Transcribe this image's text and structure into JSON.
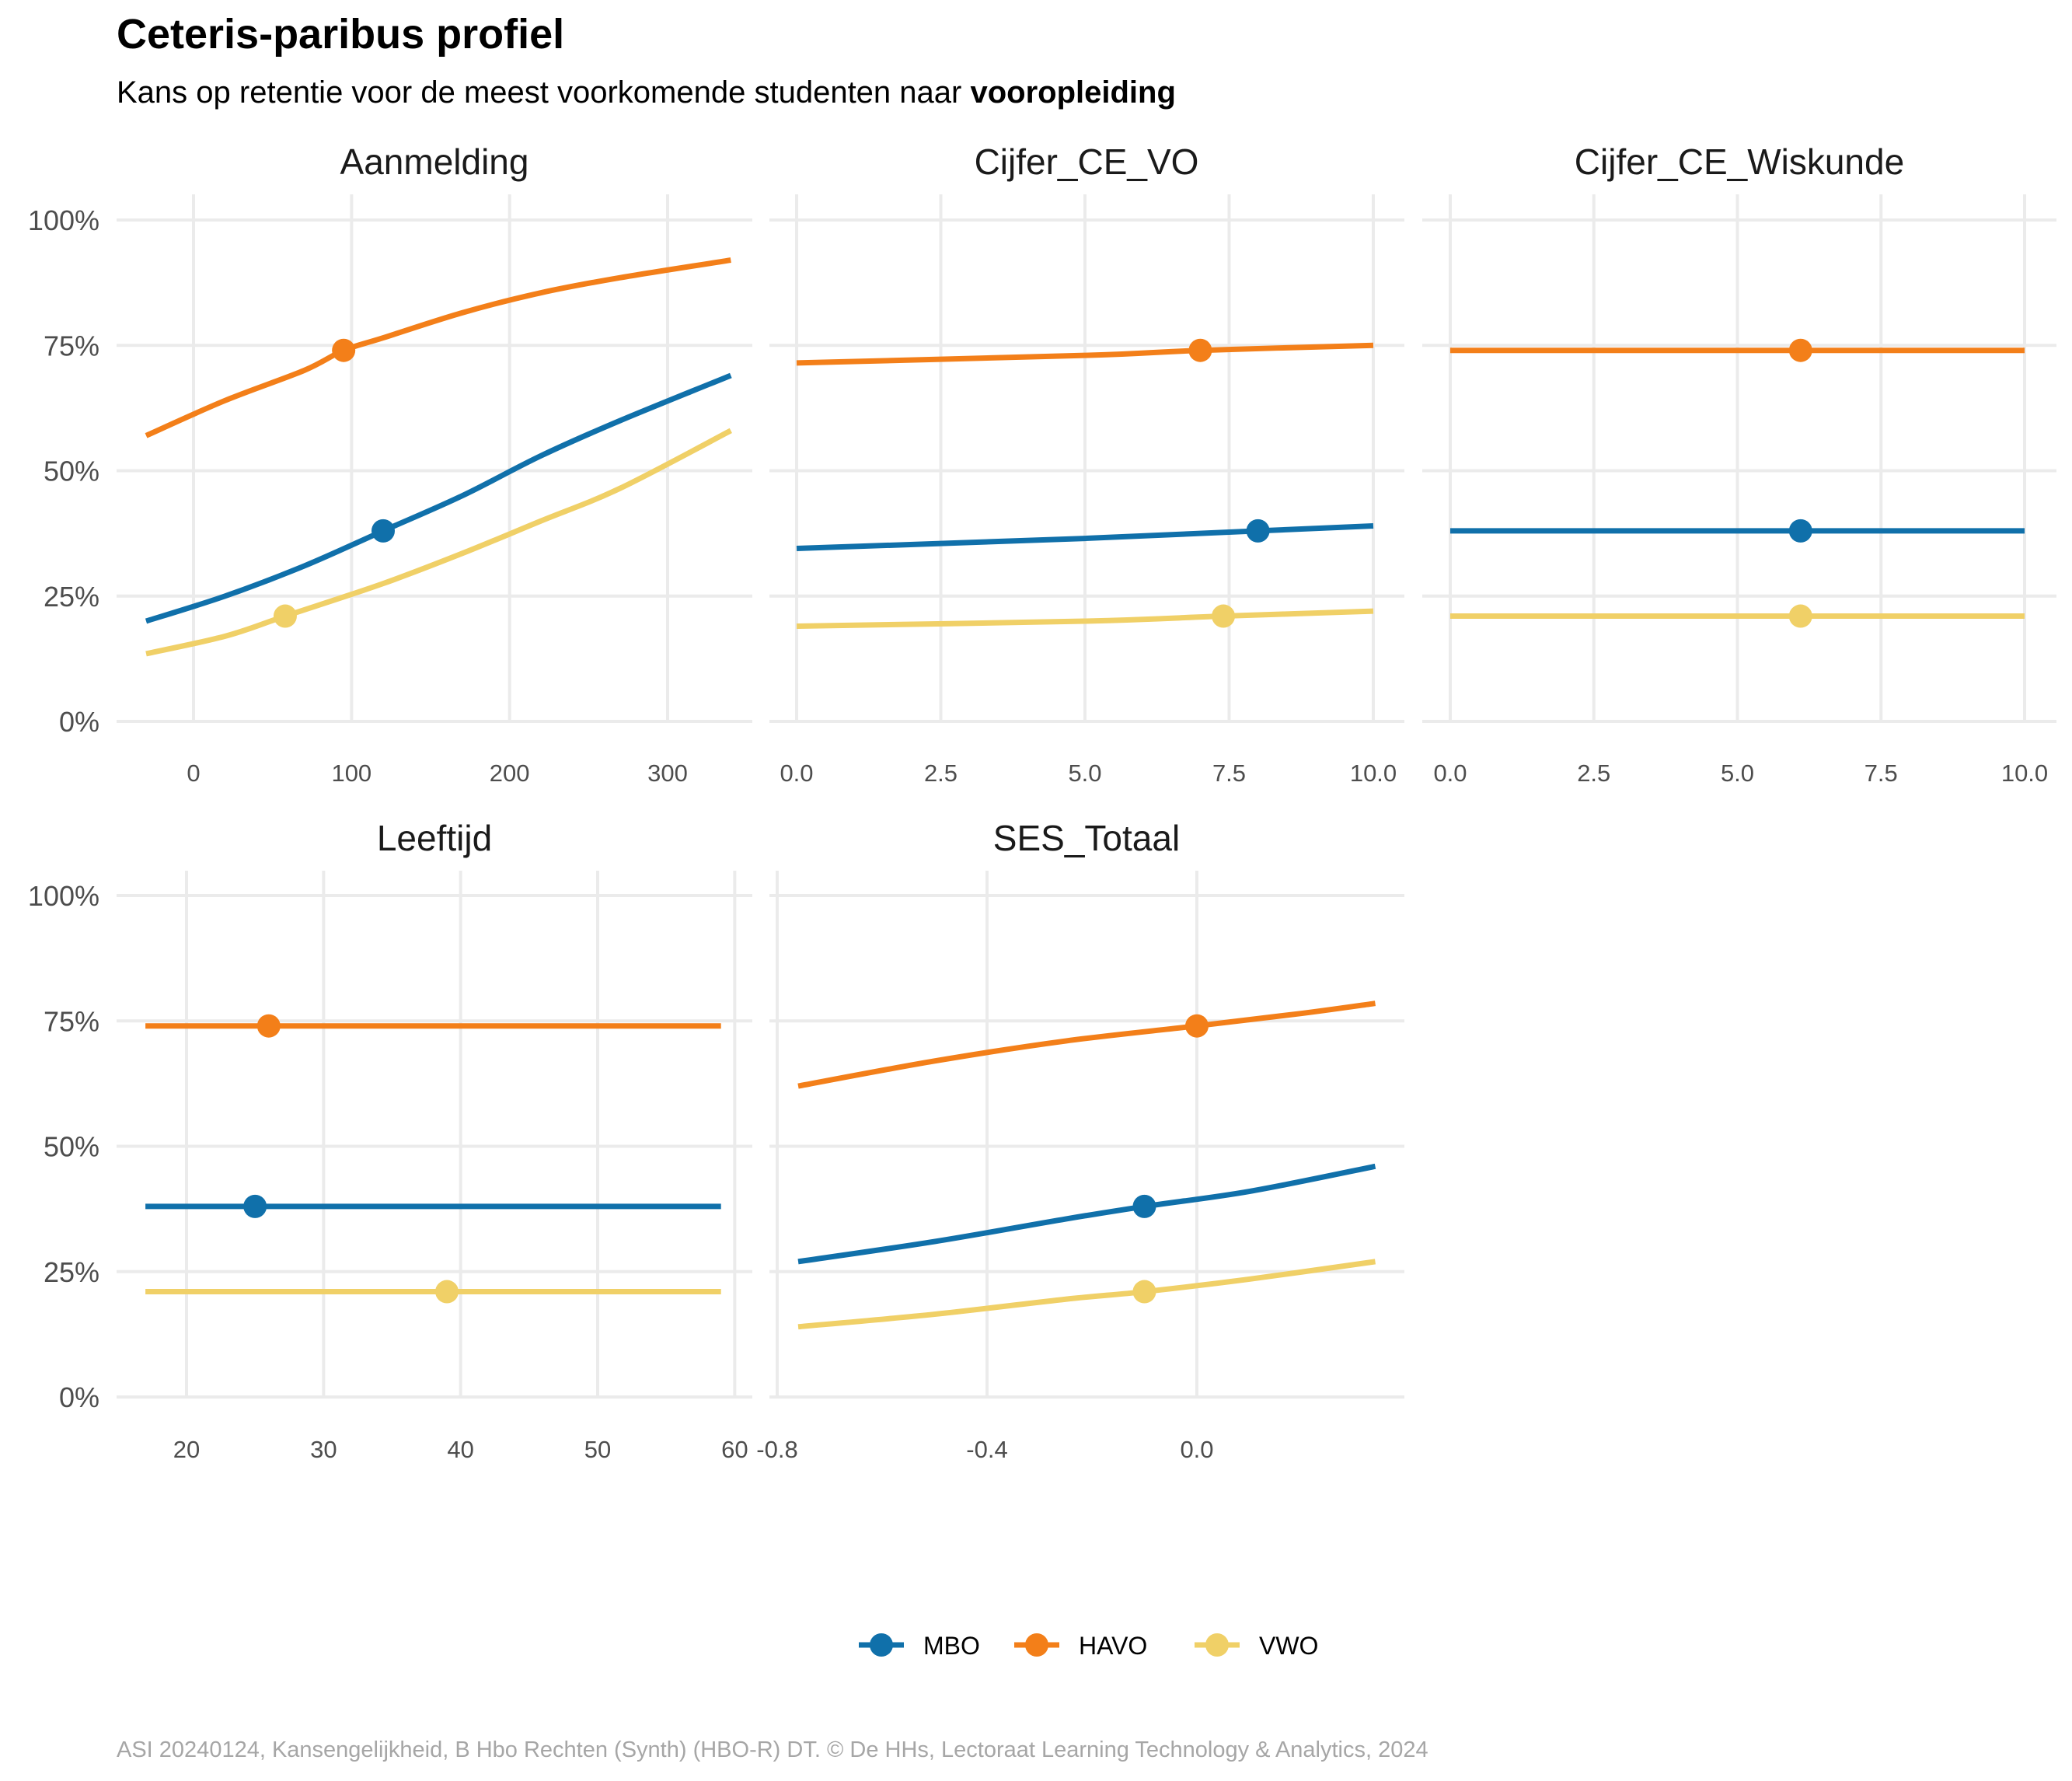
{
  "title": "Ceteris-paribus profiel",
  "subtitle_prefix": "Kans op retentie voor de meest voorkomende studenten naar ",
  "subtitle_bold": "vooropleiding",
  "caption": "ASI 20240124, Kansengelijkheid, B Hbo Rechten (Synth) (HBO-R) DT. © De HHs, Lectoraat Learning Technology & Analytics, 2024",
  "colors": {
    "MBO": "#1070aa",
    "HAVO": "#f37f19",
    "VWO": "#f0d067"
  },
  "legend": [
    {
      "label": "MBO",
      "color": "#1070aa"
    },
    {
      "label": "HAVO",
      "color": "#f37f19"
    },
    {
      "label": "VWO",
      "color": "#f0d067"
    }
  ],
  "chart_data": [
    {
      "type": "line",
      "panel": "Aanmelding",
      "xlim": [
        -30,
        340
      ],
      "ylim": [
        0,
        1
      ],
      "xticks": [
        0,
        100,
        200,
        300
      ],
      "xtick_labels": [
        "0",
        "100",
        "200",
        "300"
      ],
      "yticks": [
        0,
        0.25,
        0.5,
        0.75,
        1
      ],
      "ytick_labels": [
        "0%",
        "25%",
        "50%",
        "75%",
        "100%"
      ],
      "series": [
        {
          "name": "MBO",
          "x": [
            -30,
            20,
            70,
            120,
            170,
            220,
            270,
            340
          ],
          "y": [
            0.2,
            0.25,
            0.31,
            0.38,
            0.45,
            0.53,
            0.6,
            0.69
          ],
          "point": [
            120,
            0.38
          ]
        },
        {
          "name": "HAVO",
          "x": [
            -30,
            20,
            70,
            95,
            120,
            170,
            220,
            270,
            340
          ],
          "y": [
            0.57,
            0.64,
            0.7,
            0.74,
            0.765,
            0.815,
            0.855,
            0.885,
            0.92
          ],
          "point": [
            95,
            0.74
          ]
        },
        {
          "name": "VWO",
          "x": [
            -30,
            20,
            58,
            120,
            170,
            220,
            270,
            340
          ],
          "y": [
            0.135,
            0.17,
            0.21,
            0.275,
            0.335,
            0.4,
            0.465,
            0.58
          ],
          "point": [
            58,
            0.21
          ]
        }
      ]
    },
    {
      "type": "line",
      "panel": "Cijfer_CE_VO",
      "xlim": [
        0,
        10
      ],
      "ylim": [
        0,
        1
      ],
      "xticks": [
        0,
        2.5,
        5,
        7.5,
        10
      ],
      "xtick_labels": [
        "0.0",
        "2.5",
        "5.0",
        "7.5",
        "10.0"
      ],
      "yticks": [
        0,
        0.25,
        0.5,
        0.75,
        1
      ],
      "series": [
        {
          "name": "MBO",
          "x": [
            0,
            5,
            8,
            10
          ],
          "y": [
            0.345,
            0.365,
            0.38,
            0.39
          ],
          "point": [
            8,
            0.38
          ]
        },
        {
          "name": "HAVO",
          "x": [
            0,
            5,
            7,
            10
          ],
          "y": [
            0.715,
            0.73,
            0.74,
            0.75
          ],
          "point": [
            7,
            0.74
          ]
        },
        {
          "name": "VWO",
          "x": [
            0,
            5,
            7.4,
            10
          ],
          "y": [
            0.19,
            0.2,
            0.21,
            0.22
          ],
          "point": [
            7.4,
            0.21
          ]
        }
      ]
    },
    {
      "type": "line",
      "panel": "Cijfer_CE_Wiskunde",
      "xlim": [
        0,
        10
      ],
      "ylim": [
        0,
        1
      ],
      "xticks": [
        0,
        2.5,
        5,
        7.5,
        10
      ],
      "xtick_labels": [
        "0.0",
        "2.5",
        "5.0",
        "7.5",
        "10.0"
      ],
      "yticks": [
        0,
        0.25,
        0.5,
        0.75,
        1
      ],
      "series": [
        {
          "name": "MBO",
          "x": [
            0,
            10
          ],
          "y": [
            0.38,
            0.38
          ],
          "point": [
            6.1,
            0.38
          ]
        },
        {
          "name": "HAVO",
          "x": [
            0,
            10
          ],
          "y": [
            0.74,
            0.74
          ],
          "point": [
            6.1,
            0.74
          ]
        },
        {
          "name": "VWO",
          "x": [
            0,
            10
          ],
          "y": [
            0.21,
            0.21
          ],
          "point": [
            6.1,
            0.21
          ]
        }
      ]
    },
    {
      "type": "line",
      "panel": "Leeftijd",
      "xlim": [
        17,
        59
      ],
      "ylim": [
        0,
        1
      ],
      "xticks": [
        20,
        30,
        40,
        50,
        60
      ],
      "xtick_labels": [
        "20",
        "30",
        "40",
        "50",
        "60"
      ],
      "yticks": [
        0,
        0.25,
        0.5,
        0.75,
        1
      ],
      "ytick_labels": [
        "0%",
        "25%",
        "50%",
        "75%",
        "100%"
      ],
      "series": [
        {
          "name": "MBO",
          "x": [
            17,
            59
          ],
          "y": [
            0.38,
            0.38
          ],
          "point": [
            25,
            0.38
          ]
        },
        {
          "name": "HAVO",
          "x": [
            17,
            59
          ],
          "y": [
            0.74,
            0.74
          ],
          "point": [
            26,
            0.74
          ]
        },
        {
          "name": "VWO",
          "x": [
            17,
            59
          ],
          "y": [
            0.21,
            0.21
          ],
          "point": [
            39,
            0.21
          ]
        }
      ]
    },
    {
      "type": "line",
      "panel": "SES_Totaal",
      "xlim": [
        -0.76,
        0.34
      ],
      "ylim": [
        0,
        1
      ],
      "xticks": [
        -0.8,
        -0.4,
        0.0
      ],
      "xtick_labels": [
        "-0.8",
        "-0.4",
        "0.0"
      ],
      "yticks": [
        0,
        0.25,
        0.5,
        0.75,
        1
      ],
      "series": [
        {
          "name": "MBO",
          "x": [
            -0.76,
            -0.5,
            -0.25,
            -0.1,
            0.1,
            0.34
          ],
          "y": [
            0.27,
            0.31,
            0.355,
            0.38,
            0.41,
            0.46
          ],
          "point": [
            -0.1,
            0.38
          ]
        },
        {
          "name": "HAVO",
          "x": [
            -0.76,
            -0.5,
            -0.25,
            0.0,
            0.2,
            0.34
          ],
          "y": [
            0.62,
            0.67,
            0.71,
            0.74,
            0.765,
            0.785
          ],
          "point": [
            0.0,
            0.74
          ]
        },
        {
          "name": "VWO",
          "x": [
            -0.76,
            -0.5,
            -0.25,
            -0.1,
            0.1,
            0.34
          ],
          "y": [
            0.14,
            0.165,
            0.195,
            0.21,
            0.235,
            0.27
          ],
          "point": [
            -0.1,
            0.21
          ]
        }
      ]
    }
  ]
}
